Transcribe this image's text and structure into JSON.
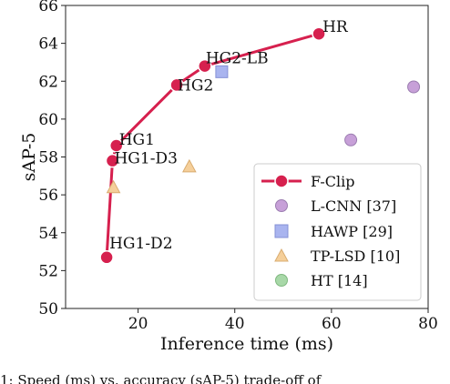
{
  "chart_data": {
    "type": "scatter",
    "xlabel": "Inference time (ms)",
    "ylabel": "sAP-5",
    "xlim": [
      5,
      80
    ],
    "ylim": [
      50,
      66
    ],
    "xticks": [
      20,
      40,
      60,
      80
    ],
    "yticks": [
      50,
      52,
      54,
      56,
      58,
      60,
      62,
      64,
      66
    ],
    "grid": false,
    "legend_position": "lower-right",
    "colors": {
      "fclip": "#d6204e",
      "lcnn": "#c7a0d8",
      "hawp": "#a9b4ef",
      "tplsd": "#f5cf9a",
      "ht": "#a8d8a8"
    },
    "series": [
      {
        "name": "F-Clip",
        "type": "line",
        "points": [
          {
            "x": 13.5,
            "y": 52.7,
            "label": "HG1-D2"
          },
          {
            "x": 14.7,
            "y": 57.8,
            "label": "HG1-D3"
          },
          {
            "x": 15.5,
            "y": 58.6,
            "label": "HG1"
          },
          {
            "x": 28.0,
            "y": 61.8,
            "label": "HG2"
          },
          {
            "x": 33.8,
            "y": 62.8,
            "label": "HG2-LB"
          },
          {
            "x": 57.4,
            "y": 64.5,
            "label": "HR"
          }
        ]
      },
      {
        "name": "L-CNN [37]",
        "type": "scatter",
        "points": [
          {
            "x": 64.0,
            "y": 58.9
          },
          {
            "x": 77.0,
            "y": 61.7
          }
        ]
      },
      {
        "name": "HAWP [29]",
        "type": "scatter",
        "points": [
          {
            "x": 37.3,
            "y": 62.5
          }
        ]
      },
      {
        "name": "TP-LSD [10]",
        "type": "scatter",
        "points": [
          {
            "x": 14.9,
            "y": 56.4
          },
          {
            "x": 30.6,
            "y": 57.5
          }
        ]
      },
      {
        "name": "HT [14]",
        "type": "scatter",
        "points": []
      }
    ]
  },
  "caption": "1: Speed (ms) vs. accuracy (sAP-5) trade-off of"
}
